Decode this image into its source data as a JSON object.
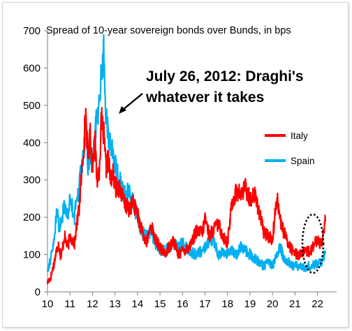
{
  "chart_data": {
    "type": "line",
    "title": "Spread of 10-year sovereign bonds over Bunds, in bps",
    "xlabel": "",
    "ylabel": "",
    "x_ticks": [
      "10",
      "11",
      "12",
      "13",
      "14",
      "15",
      "16",
      "17",
      "18",
      "19",
      "20",
      "21",
      "22"
    ],
    "y_ticks": [
      "0",
      "100",
      "200",
      "300",
      "400",
      "500",
      "600",
      "700"
    ],
    "xlim": [
      2010,
      2022.85
    ],
    "ylim": [
      0,
      700
    ],
    "grid": false,
    "legend_position": "right",
    "annotation": {
      "line1": "July 26, 2012: Draghi's",
      "line2": "whatever it takes",
      "x": 2012.57,
      "y": 460
    },
    "highlight": "dotted ellipse around early 2022",
    "series": [
      {
        "name": "Italy",
        "color": "#ff0000",
        "x": [
          2010.0,
          2010.15,
          2010.3,
          2010.4,
          2010.5,
          2010.6,
          2010.75,
          2010.9,
          2011.0,
          2011.1,
          2011.2,
          2011.3,
          2011.4,
          2011.5,
          2011.55,
          2011.6,
          2011.7,
          2011.8,
          2011.9,
          2012.0,
          2012.1,
          2012.2,
          2012.3,
          2012.4,
          2012.5,
          2012.6,
          2012.7,
          2012.8,
          2012.9,
          2013.0,
          2013.2,
          2013.4,
          2013.6,
          2013.8,
          2014.0,
          2014.2,
          2014.4,
          2014.6,
          2014.8,
          2015.0,
          2015.2,
          2015.4,
          2015.6,
          2015.8,
          2016.0,
          2016.3,
          2016.6,
          2016.9,
          2017.0,
          2017.2,
          2017.4,
          2017.6,
          2017.8,
          2018.0,
          2018.2,
          2018.4,
          2018.6,
          2018.8,
          2019.0,
          2019.2,
          2019.4,
          2019.6,
          2019.8,
          2020.0,
          2020.2,
          2020.35,
          2020.5,
          2020.7,
          2020.9,
          2021.1,
          2021.4,
          2021.7,
          2022.0,
          2022.15,
          2022.3,
          2022.35
        ],
        "values": [
          25,
          40,
          80,
          110,
          130,
          90,
          150,
          120,
          150,
          140,
          130,
          180,
          220,
          300,
          340,
          380,
          480,
          360,
          420,
          340,
          410,
          300,
          330,
          460,
          420,
          330,
          360,
          300,
          320,
          280,
          280,
          240,
          220,
          240,
          210,
          160,
          130,
          180,
          140,
          120,
          100,
          120,
          140,
          100,
          110,
          120,
          160,
          160,
          200,
          150,
          170,
          180,
          150,
          130,
          240,
          270,
          260,
          280,
          250,
          260,
          220,
          160,
          150,
          140,
          260,
          190,
          160,
          130,
          110,
          100,
          105,
          110,
          140,
          130,
          170,
          190
        ]
      },
      {
        "name": "Spain",
        "color": "#00b0f0",
        "x": [
          2010.0,
          2010.15,
          2010.3,
          2010.4,
          2010.5,
          2010.6,
          2010.75,
          2010.9,
          2011.0,
          2011.1,
          2011.2,
          2011.3,
          2011.4,
          2011.5,
          2011.55,
          2011.6,
          2011.7,
          2011.8,
          2011.9,
          2012.0,
          2012.1,
          2012.2,
          2012.3,
          2012.4,
          2012.5,
          2012.6,
          2012.7,
          2012.8,
          2012.9,
          2013.0,
          2013.2,
          2013.4,
          2013.6,
          2013.8,
          2014.0,
          2014.2,
          2014.4,
          2014.6,
          2014.8,
          2015.0,
          2015.2,
          2015.4,
          2015.6,
          2015.8,
          2016.0,
          2016.3,
          2016.6,
          2016.9,
          2017.0,
          2017.2,
          2017.4,
          2017.6,
          2017.8,
          2018.0,
          2018.2,
          2018.4,
          2018.6,
          2018.8,
          2019.0,
          2019.2,
          2019.4,
          2019.6,
          2019.8,
          2020.0,
          2020.2,
          2020.35,
          2020.5,
          2020.7,
          2020.9,
          2021.1,
          2021.4,
          2021.7,
          2022.0,
          2022.15,
          2022.3,
          2022.35
        ],
        "values": [
          60,
          90,
          140,
          220,
          180,
          180,
          240,
          200,
          250,
          230,
          200,
          260,
          270,
          350,
          330,
          370,
          430,
          330,
          380,
          330,
          420,
          470,
          500,
          600,
          640,
          470,
          420,
          400,
          380,
          340,
          300,
          260,
          270,
          240,
          200,
          160,
          150,
          160,
          130,
          110,
          110,
          120,
          130,
          120,
          130,
          110,
          100,
          110,
          120,
          140,
          130,
          100,
          110,
          100,
          110,
          100,
          120,
          110,
          100,
          90,
          80,
          70,
          80,
          70,
          100,
          120,
          90,
          80,
          70,
          70,
          65,
          70,
          75,
          80,
          95,
          110
        ]
      }
    ]
  }
}
